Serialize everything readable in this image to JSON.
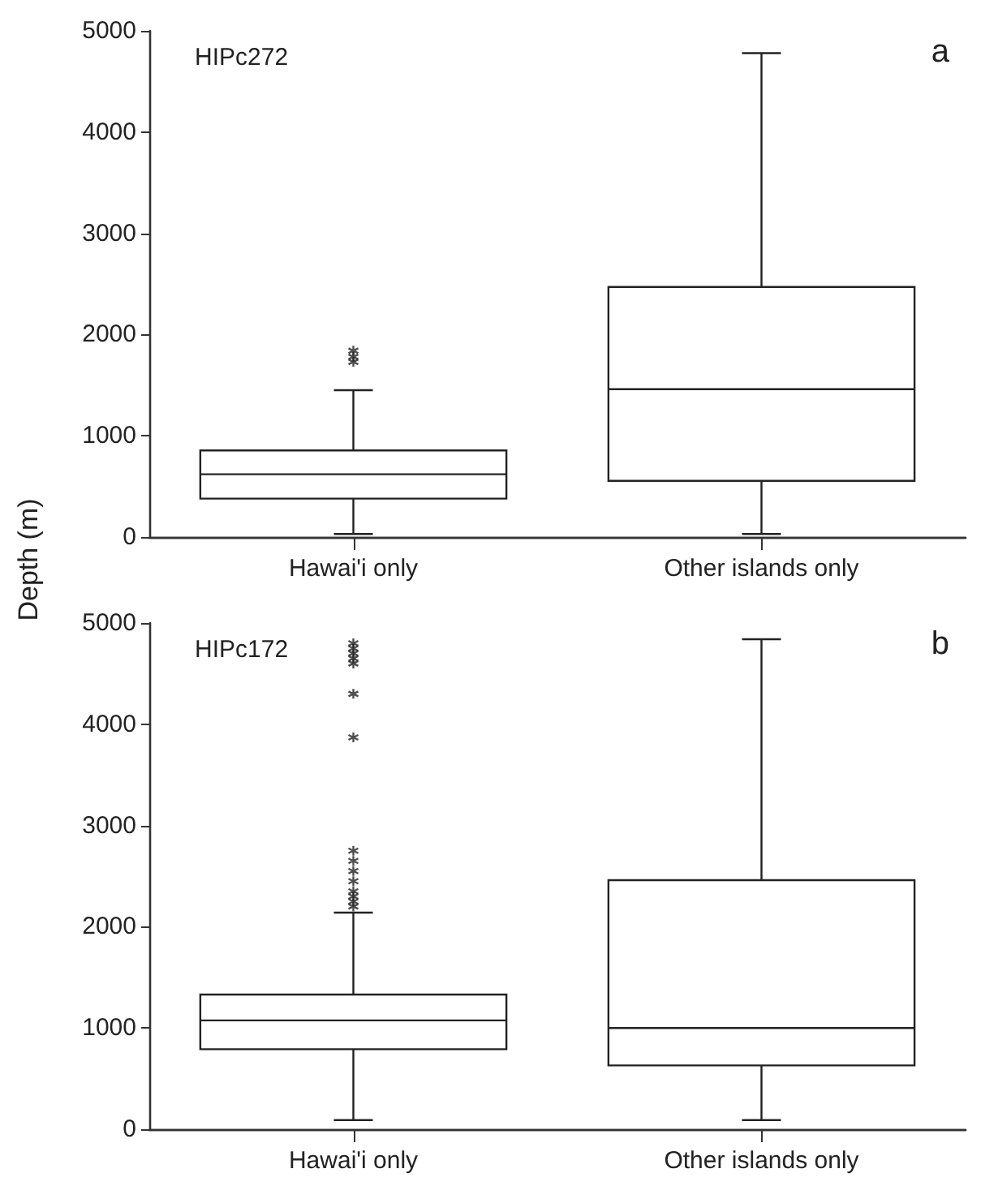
{
  "chart_data": [
    {
      "type": "box",
      "ylabel": "Depth (m)",
      "categories": [
        "Hawai'i only",
        "Other islands only"
      ],
      "annotations": [
        "HIPc272",
        "a"
      ],
      "boxes": [
        {
          "low": 30,
          "q1": 380,
          "median": 620,
          "q3": 855,
          "high": 1450,
          "outliers": [
            1730,
            1780,
            1840
          ]
        },
        {
          "low": 30,
          "q1": 555,
          "median": 1460,
          "q3": 2470,
          "high": 4780
        }
      ],
      "ylim": [
        0,
        5000
      ],
      "yticks": [
        0,
        1000,
        2000,
        3000,
        4000,
        5000
      ],
      "grid": false
    },
    {
      "type": "box",
      "categories": [
        "Hawai'i only",
        "Other islands only"
      ],
      "annotations": [
        "HIPc172",
        "b"
      ],
      "boxes": [
        {
          "low": 90,
          "q1": 790,
          "median": 1075,
          "q3": 1330,
          "high": 2140,
          "outliers": [
            2200,
            2250,
            2300,
            2350,
            2450,
            2550,
            2650,
            2750,
            3870,
            4300,
            4600,
            4650,
            4700,
            4750,
            4800
          ]
        },
        {
          "low": 90,
          "q1": 630,
          "median": 1000,
          "q3": 2460,
          "high": 4840
        }
      ],
      "ylim": [
        0,
        5000
      ],
      "yticks": [
        0,
        1000,
        2000,
        3000,
        4000,
        5000
      ],
      "grid": false
    }
  ]
}
